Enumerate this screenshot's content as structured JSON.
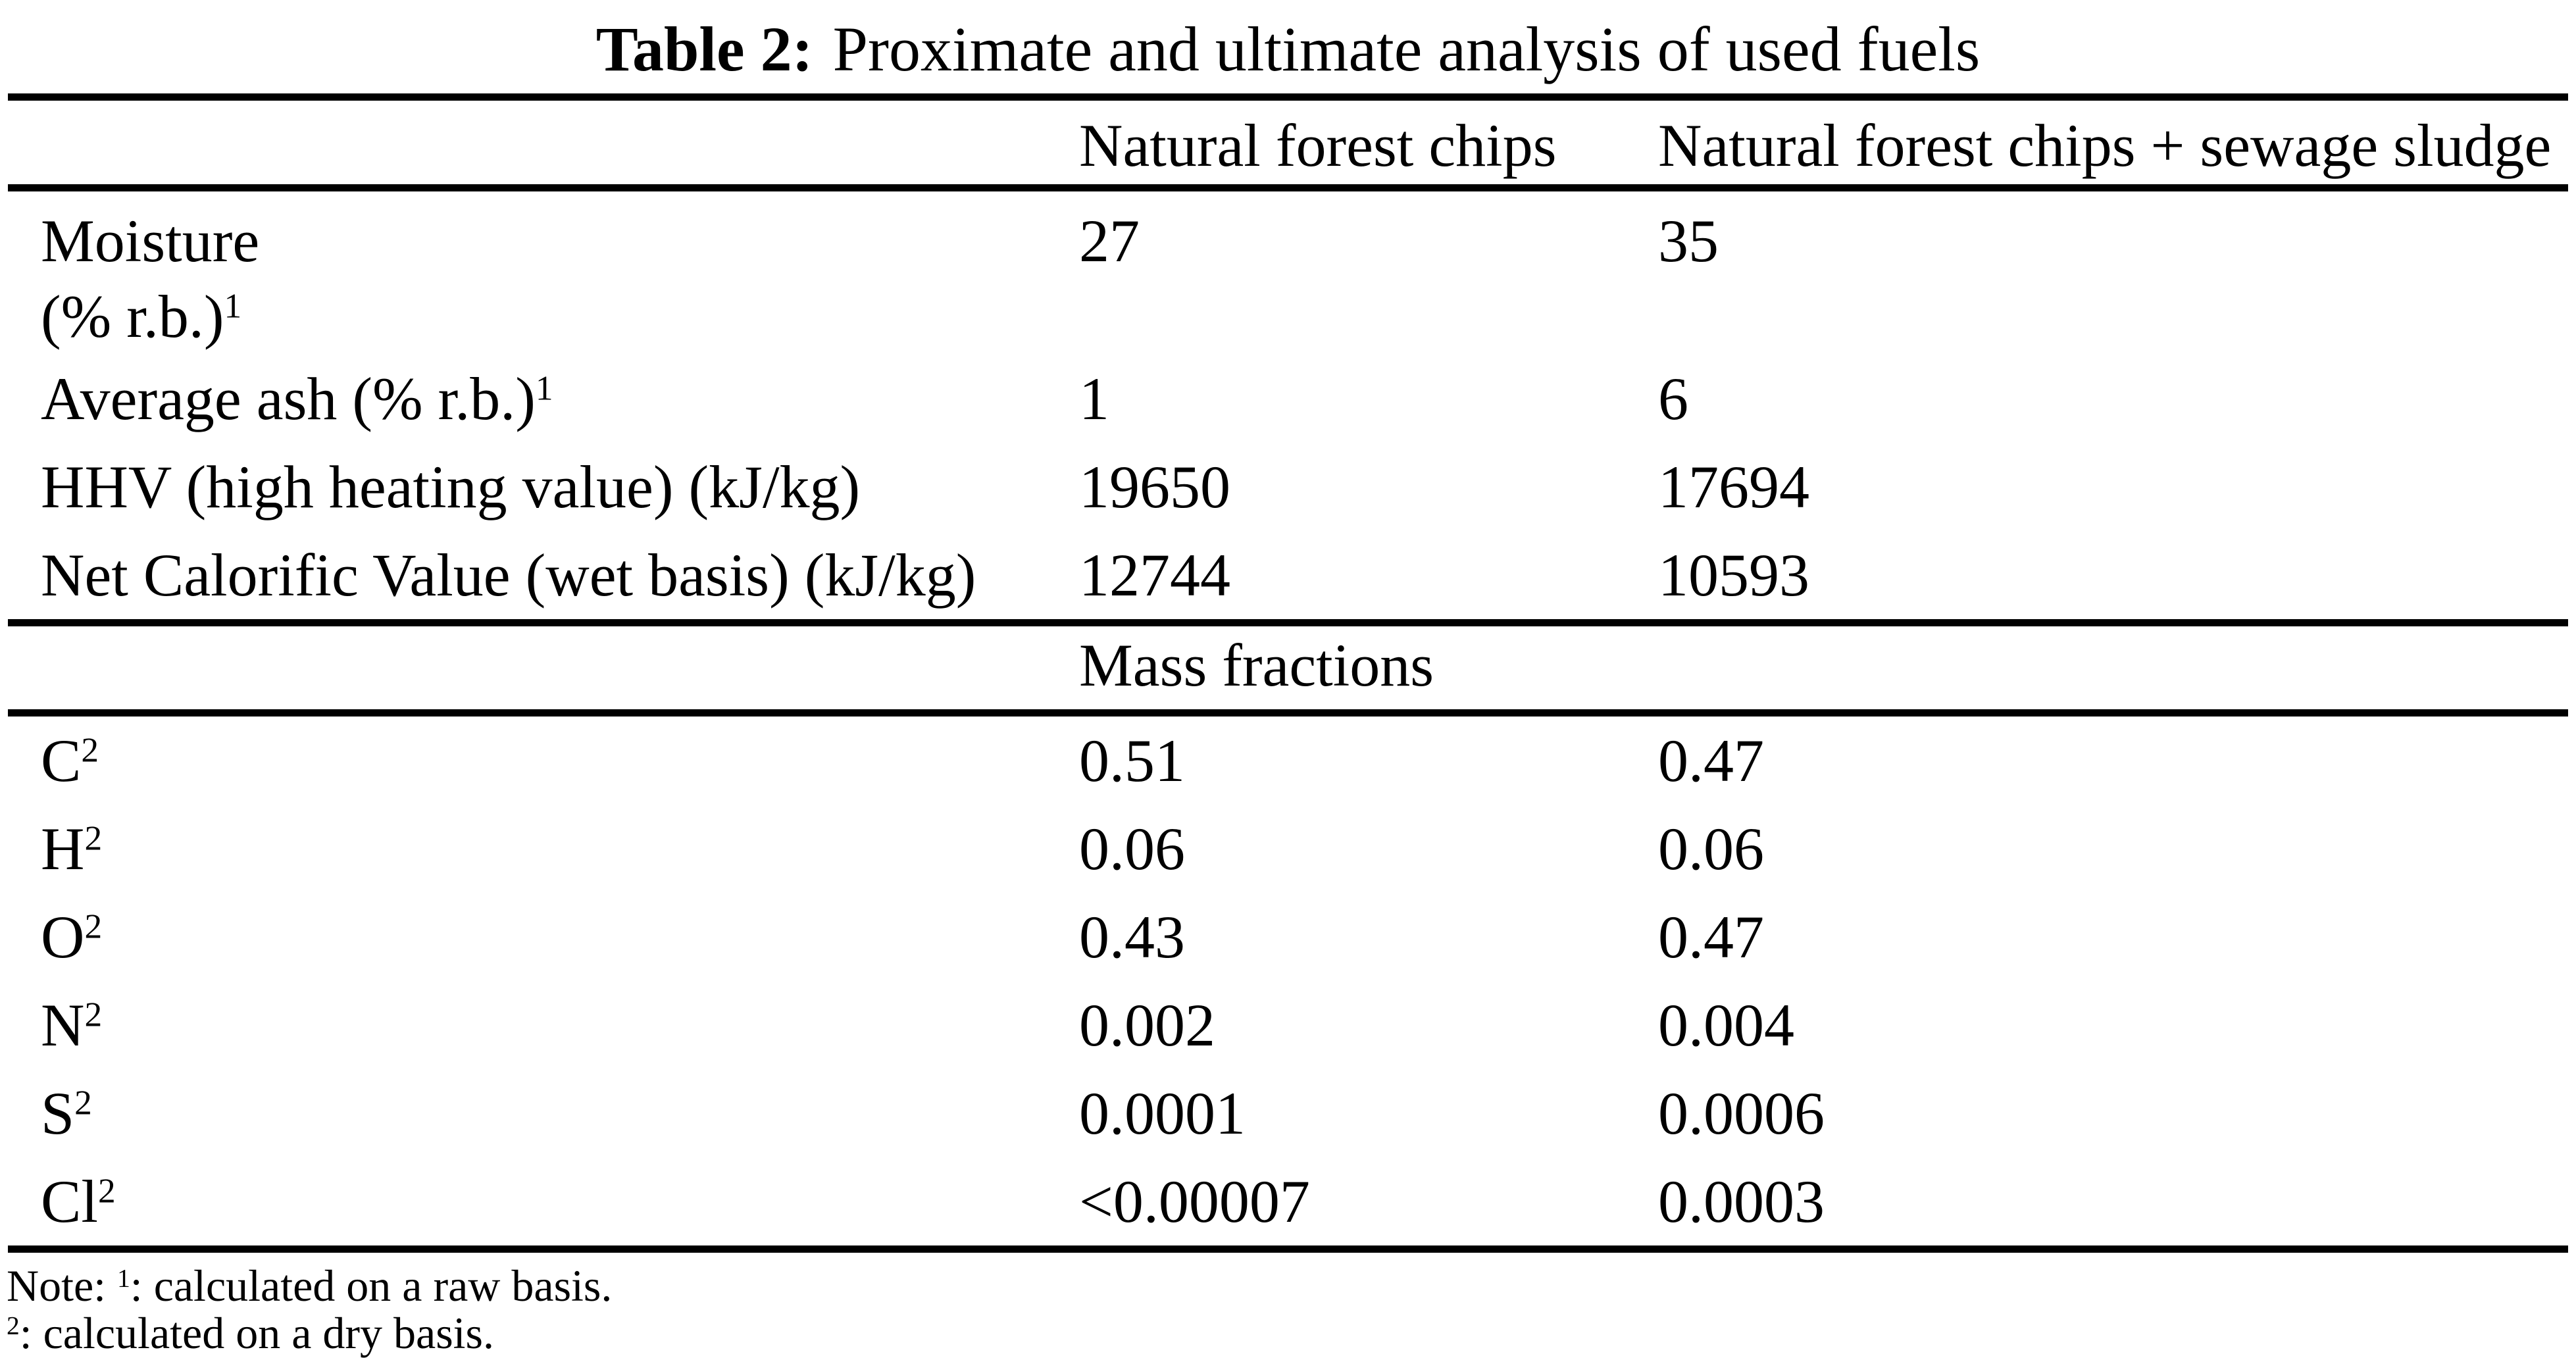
{
  "theme": {
    "ink": "#000000",
    "background": "#ffffff"
  },
  "caption": {
    "label": "Table 2:",
    "text": "Proximate and ultimate analysis of used fuels"
  },
  "header": {
    "col2": "Natural forest chips",
    "col3": "Natural forest chips + sewage sludge"
  },
  "proximate": {
    "moisture": {
      "line1": "Moisture",
      "line2": "(% r.b.)",
      "sup": "1",
      "v1": "27",
      "v2": "35"
    },
    "ash": {
      "label": "Average ash (% r.b.)",
      "sup": "1",
      "v1": "1",
      "v2": "6"
    },
    "hhv": {
      "label": "HHV (high heating value) (kJ/kg)",
      "v1": "19650",
      "v2": "17694"
    },
    "ncv": {
      "label": "Net Calorific Value (wet basis) (kJ/kg)",
      "v1": "12744",
      "v2": "10593"
    }
  },
  "section_header": "Mass fractions",
  "mass_fractions": [
    {
      "symbol": "C",
      "sup": "2",
      "v1": "0.51",
      "v2": "0.47"
    },
    {
      "symbol": "H",
      "sup": "2",
      "v1": "0.06",
      "v2": "0.06"
    },
    {
      "symbol": "O",
      "sup": "2",
      "v1": "0.43",
      "v2": "0.47"
    },
    {
      "symbol": "N",
      "sup": "2",
      "v1": "0.002",
      "v2": "0.004"
    },
    {
      "symbol": "S",
      "sup": "2",
      "v1": "0.0001",
      "v2": "0.0006"
    },
    {
      "symbol": "Cl",
      "sup": "2",
      "v1": "<0.00007",
      "v2": "0.0003"
    }
  ],
  "notes": {
    "line1": {
      "prefix": "Note: ",
      "sup": "1",
      "text": ": calculated on a raw basis."
    },
    "line2": {
      "sup": "2",
      "text": ": calculated on a dry basis."
    }
  }
}
